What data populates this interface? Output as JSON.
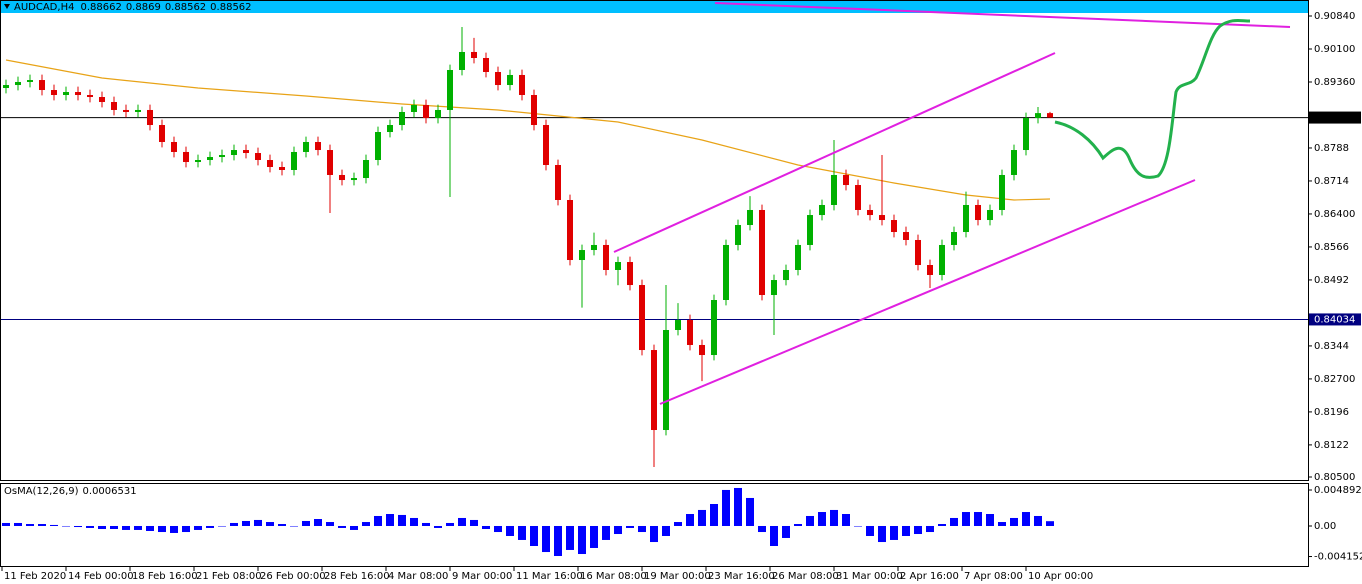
{
  "chart_data": {
    "type": "candlestick",
    "symbol": "AUDCAD,H4",
    "header_ohlc": [
      0.88662,
      0.8869,
      0.88562,
      0.88562
    ],
    "ylim": [
      0.805,
      0.9084
    ],
    "yticks": [
      {
        "value": 0.9084,
        "label": "0.90840"
      },
      {
        "value": 0.901,
        "label": "0.90100"
      },
      {
        "value": 0.8936,
        "label": "0.89360"
      },
      0.8788,
      0.8714,
      {
        "value": 0.864,
        "label": "0.86400"
      },
      0.8566,
      0.8492,
      0.8344,
      {
        "value": 0.827,
        "label": "0.82700"
      },
      0.8196,
      0.8122,
      {
        "value": 0.805,
        "label": "0.80500"
      }
    ],
    "levels": [
      {
        "value": 0.88562,
        "color": "#000000"
      },
      0.84034
    ],
    "level_colors": [
      "#000000",
      "#000080"
    ],
    "xtick_labels": [
      "11 Feb 2020",
      "14 Feb 00:00",
      "18 Feb 16:00",
      "21 Feb 08:00",
      "26 Feb 00:00",
      "28 Feb 16:00",
      "4 Mar 08:00",
      "9 Mar 00:00",
      "11 Mar 16:00",
      "16 Mar 08:00",
      "19 Mar 00:00",
      "23 Mar 16:00",
      "26 Mar 08:00",
      "31 Mar 00:00",
      "2 Apr 16:00",
      "7 Apr 08:00",
      "10 Apr 00:00"
    ],
    "up_color": "#00b000",
    "down_color": "#e00000",
    "candles": [
      [
        0.89225,
        0.89412,
        0.89105,
        0.89292
      ],
      [
        0.89292,
        0.8948,
        0.89172,
        0.8936
      ],
      [
        0.8936,
        0.89524,
        0.8924,
        0.89404
      ],
      [
        0.89404,
        0.89524,
        0.8906,
        0.8918
      ],
      [
        0.8918,
        0.893,
        0.88948,
        0.89068
      ],
      [
        0.89068,
        0.89255,
        0.88948,
        0.89135
      ],
      [
        0.89135,
        0.89255,
        0.88948,
        0.89068
      ],
      [
        0.89068,
        0.89188,
        0.88903,
        0.89023
      ],
      [
        0.89023,
        0.89143,
        0.88791,
        0.88911
      ],
      [
        0.88911,
        0.89031,
        0.88612,
        0.88732
      ],
      [
        0.88732,
        0.88852,
        0.88567,
        0.88687
      ],
      [
        0.88687,
        0.88852,
        0.88567,
        0.88732
      ],
      [
        0.88732,
        0.88852,
        0.88275,
        0.88395
      ],
      [
        0.88395,
        0.88515,
        0.87894,
        0.88014
      ],
      [
        0.88014,
        0.88134,
        0.8767,
        0.8779
      ],
      [
        0.8779,
        0.8791,
        0.87445,
        0.87565
      ],
      [
        0.87565,
        0.8773,
        0.87445,
        0.8761
      ],
      [
        0.8761,
        0.87797,
        0.8749,
        0.87677
      ],
      [
        0.87677,
        0.87842,
        0.87557,
        0.87722
      ],
      [
        0.87722,
        0.87954,
        0.87602,
        0.87834
      ],
      [
        0.87834,
        0.87954,
        0.87647,
        0.87767
      ],
      [
        0.87767,
        0.87887,
        0.8749,
        0.8761
      ],
      [
        0.8761,
        0.8773,
        0.87333,
        0.87453
      ],
      [
        0.87453,
        0.87573,
        0.87266,
        0.87386
      ],
      [
        0.87386,
        0.8791,
        0.87266,
        0.8779
      ],
      [
        0.8779,
        0.88134,
        0.8767,
        0.88014
      ],
      [
        0.88014,
        0.88134,
        0.87714,
        0.87834
      ],
      [
        0.87834,
        0.87954,
        0.8642,
        0.87274
      ],
      [
        0.87274,
        0.87394,
        0.87041,
        0.87161
      ],
      [
        0.87161,
        0.87326,
        0.87041,
        0.87206
      ],
      [
        0.87206,
        0.8773,
        0.87086,
        0.8761
      ],
      [
        0.8761,
        0.88358,
        0.8749,
        0.88238
      ],
      [
        0.88238,
        0.88515,
        0.88118,
        0.88395
      ],
      [
        0.88395,
        0.88807,
        0.88275,
        0.88687
      ],
      [
        0.88687,
        0.88964,
        0.88567,
        0.88844
      ],
      [
        0.88844,
        0.88964,
        0.88432,
        0.88552
      ],
      [
        0.88552,
        0.88852,
        0.88432,
        0.88732
      ],
      [
        0.88732,
        0.89749,
        0.8678,
        0.89629
      ],
      [
        0.89629,
        0.90593,
        0.89509,
        0.90033
      ],
      [
        0.90033,
        0.9035,
        0.89778,
        0.89898
      ],
      [
        0.89898,
        0.90018,
        0.89464,
        0.89584
      ],
      [
        0.89584,
        0.89704,
        0.89172,
        0.89292
      ],
      [
        0.89292,
        0.89637,
        0.89172,
        0.89517
      ],
      [
        0.89517,
        0.89637,
        0.88948,
        0.89068
      ],
      [
        0.89068,
        0.89188,
        0.88275,
        0.88395
      ],
      [
        0.88395,
        0.88515,
        0.87378,
        0.87498
      ],
      [
        0.87498,
        0.87618,
        0.86593,
        0.86713
      ],
      [
        0.86713,
        0.86833,
        0.85247,
        0.85367
      ],
      [
        0.85367,
        0.85711,
        0.843,
        0.85591
      ],
      [
        0.85591,
        0.8598,
        0.85471,
        0.85704
      ],
      [
        0.85704,
        0.85824,
        0.85023,
        0.85143
      ],
      [
        0.85143,
        0.85442,
        0.848,
        0.85322
      ],
      [
        0.85322,
        0.85442,
        0.84686,
        0.84806
      ],
      [
        0.84806,
        0.84926,
        0.83228,
        0.83348
      ],
      [
        0.83348,
        0.83468,
        0.80724,
        0.81554
      ],
      [
        0.81554,
        0.84806,
        0.81434,
        0.83797
      ],
      [
        0.83797,
        0.844,
        0.83677,
        0.84021
      ],
      [
        0.84021,
        0.84141,
        0.83341,
        0.83461
      ],
      [
        0.83461,
        0.83581,
        0.8265,
        0.83236
      ],
      [
        0.83236,
        0.8459,
        0.83116,
        0.8447
      ],
      [
        0.8447,
        0.85824,
        0.8435,
        0.85704
      ],
      [
        0.85704,
        0.86272,
        0.85584,
        0.86152
      ],
      [
        0.86152,
        0.868,
        0.86032,
        0.86489
      ],
      [
        0.86489,
        0.86609,
        0.84462,
        0.84582
      ],
      [
        0.84582,
        0.85038,
        0.83685,
        0.84918
      ],
      [
        0.84918,
        0.85263,
        0.84798,
        0.85143
      ],
      [
        0.85143,
        0.85824,
        0.85023,
        0.85704
      ],
      [
        0.85704,
        0.86496,
        0.85584,
        0.86376
      ],
      [
        0.86376,
        0.86721,
        0.86256,
        0.86601
      ],
      [
        0.86601,
        0.88059,
        0.86481,
        0.87274
      ],
      [
        0.87274,
        0.87394,
        0.86929,
        0.87049
      ],
      [
        0.87049,
        0.87169,
        0.86369,
        0.86489
      ],
      [
        0.86489,
        0.86609,
        0.86256,
        0.86376
      ],
      [
        0.86376,
        0.87722,
        0.86144,
        0.86264
      ],
      [
        0.86264,
        0.86384,
        0.85875,
        0.85995
      ],
      [
        0.85995,
        0.86115,
        0.85696,
        0.85816
      ],
      [
        0.85816,
        0.85936,
        0.85135,
        0.85255
      ],
      [
        0.85255,
        0.85375,
        0.8474,
        0.85031
      ],
      [
        0.85031,
        0.85824,
        0.84911,
        0.85704
      ],
      [
        0.85704,
        0.86115,
        0.85584,
        0.85995
      ],
      [
        0.85995,
        0.869,
        0.85875,
        0.86601
      ],
      [
        0.86601,
        0.86721,
        0.86144,
        0.86264
      ],
      [
        0.86264,
        0.86609,
        0.86144,
        0.86489
      ],
      [
        0.86489,
        0.87394,
        0.86369,
        0.87274
      ],
      [
        0.87274,
        0.87954,
        0.87154,
        0.87834
      ],
      [
        0.87834,
        0.88672,
        0.87714,
        0.88552
      ],
      [
        0.88552,
        0.888,
        0.88432,
        0.88662
      ],
      [
        0.88662,
        0.8869,
        0.88562,
        0.88562
      ]
    ],
    "ma_color": "#e8a317",
    "ma_index": [
      0,
      8,
      16,
      25,
      33,
      41,
      46,
      51,
      58,
      66,
      74,
      80,
      84,
      87
    ],
    "ma_values": [
      0.89853,
      0.89449,
      0.89225,
      0.89046,
      0.88866,
      0.88732,
      0.88597,
      0.88463,
      0.88059,
      0.87498,
      0.87094,
      0.86825,
      0.86713,
      0.86735
    ],
    "indicator": {
      "name": "OsMA(12,26,9)",
      "current": 0.0006531,
      "color": "#0000ff",
      "ylim": [
        -0.00544,
        0.00571
      ],
      "yticks": [
        0.0048921,
        {
          "value": 0,
          "label": "0.00"
        },
        -0.004152
      ],
      "values": [
        0.00041,
        0.00041,
        0.00027,
        0.00027,
        0.00014,
        0,
        -0.00014,
        -0.00027,
        -0.00041,
        -0.00041,
        -0.00054,
        -0.00054,
        -0.00068,
        -0.00082,
        -0.00095,
        -0.00082,
        -0.00054,
        -0.00027,
        0,
        0.00041,
        0.00068,
        0.00082,
        0.00054,
        0.00027,
        0,
        0.00068,
        0.00095,
        0.00054,
        -0.00027,
        -0.00054,
        0.00054,
        0.00136,
        0.00163,
        0.0015,
        0.00109,
        0.00041,
        -0.00027,
        0.00041,
        0.00109,
        0.00082,
        -0.00041,
        -0.00082,
        -0.00136,
        -0.0019,
        -0.00272,
        -0.00354,
        -0.00408,
        -0.00326,
        -0.00381,
        -0.00299,
        -0.0019,
        -0.00109,
        -0.00027,
        -0.00082,
        -0.00218,
        -0.00136,
        0.00054,
        0.00163,
        0.00218,
        0.00299,
        0.0049,
        0.00517,
        0.00381,
        -0.00082,
        -0.00272,
        -0.00163,
        0.00027,
        0.00136,
        0.0019,
        0.00218,
        0.00163,
        0,
        -0.00136,
        -0.00218,
        -0.0019,
        -0.00136,
        -0.00109,
        -0.00082,
        0.00027,
        0.00109,
        0.0019,
        0.0019,
        0.00163,
        0.00054,
        0.00109,
        0.0019,
        0.00136,
        0.0006531
      ]
    }
  }
}
